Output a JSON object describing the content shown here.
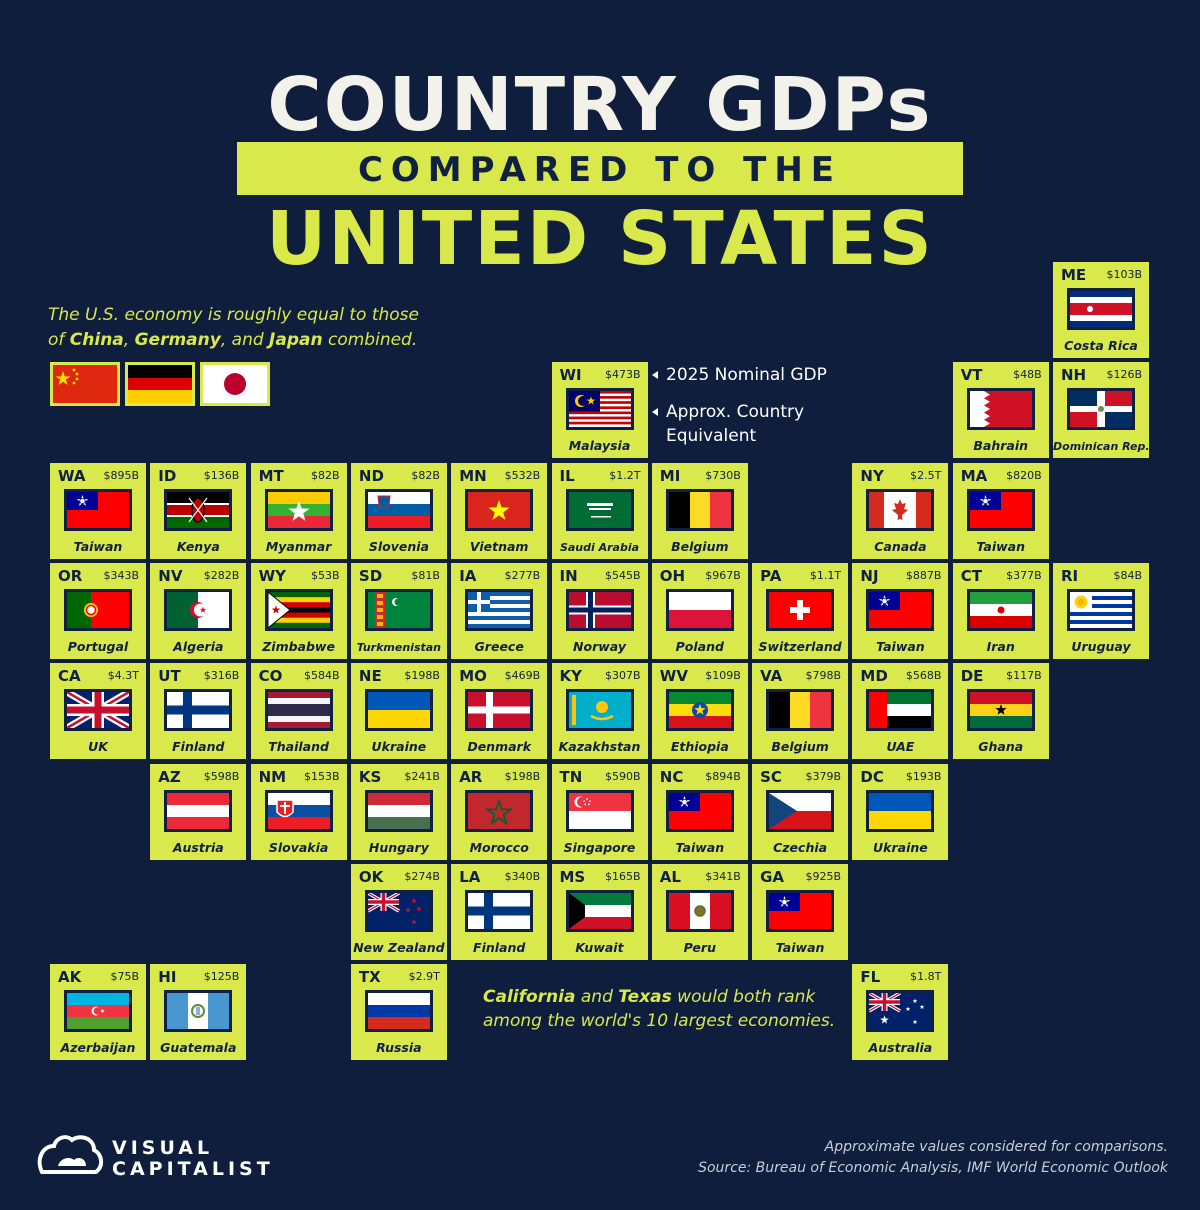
{
  "title": {
    "line1": "COUNTRY GDPs",
    "line2": "COMPARED TO THE",
    "line3": "UNITED STATES"
  },
  "intro": {
    "line1": "The U.S. economy is roughly equal to those",
    "of": "of",
    "country1": "China",
    "country2": "Germany",
    "and": "and",
    "country3": "Japan",
    "combined": "combined."
  },
  "intro_flags": [
    "china-flag",
    "germany-flag",
    "japan-flag"
  ],
  "legend": {
    "gdp": "2025 Nominal GDP",
    "equivalent_line1": "Approx. Country",
    "equivalent_line2": "Equivalent"
  },
  "note": {
    "california": "California",
    "and": "and",
    "texas": "Texas",
    "rest1": "would both rank",
    "rest2": "among the world's 10 largest economies."
  },
  "brand": {
    "line1": "VISUAL",
    "line2": "CAPITALIST"
  },
  "footer": {
    "line1": "Approximate values considered for comparisons.",
    "line2": "Source: Bureau of Economic Analysis, IMF World Economic Outlook"
  },
  "colors": {
    "background": "#0f1e3d",
    "accent": "#d9e84a",
    "text_dark": "#102040"
  },
  "states": [
    {
      "state": "ME",
      "gdp": "$103B",
      "country": "Costa Rica",
      "flag": "costa-rica"
    },
    {
      "state": "WI",
      "gdp": "$473B",
      "country": "Malaysia",
      "flag": "malaysia"
    },
    {
      "state": "VT",
      "gdp": "$48B",
      "country": "Bahrain",
      "flag": "bahrain"
    },
    {
      "state": "NH",
      "gdp": "$126B",
      "country": "Dominican Rep.",
      "flag": "dominican-republic"
    },
    {
      "state": "WA",
      "gdp": "$895B",
      "country": "Taiwan",
      "flag": "taiwan"
    },
    {
      "state": "ID",
      "gdp": "$136B",
      "country": "Kenya",
      "flag": "kenya"
    },
    {
      "state": "MT",
      "gdp": "$82B",
      "country": "Myanmar",
      "flag": "myanmar"
    },
    {
      "state": "ND",
      "gdp": "$82B",
      "country": "Slovenia",
      "flag": "slovenia"
    },
    {
      "state": "MN",
      "gdp": "$532B",
      "country": "Vietnam",
      "flag": "vietnam"
    },
    {
      "state": "IL",
      "gdp": "$1.2T",
      "country": "Saudi Arabia",
      "flag": "saudi-arabia"
    },
    {
      "state": "MI",
      "gdp": "$730B",
      "country": "Belgium",
      "flag": "belgium"
    },
    {
      "state": "NY",
      "gdp": "$2.5T",
      "country": "Canada",
      "flag": "canada"
    },
    {
      "state": "MA",
      "gdp": "$820B",
      "country": "Taiwan",
      "flag": "taiwan"
    },
    {
      "state": "OR",
      "gdp": "$343B",
      "country": "Portugal",
      "flag": "portugal"
    },
    {
      "state": "NV",
      "gdp": "$282B",
      "country": "Algeria",
      "flag": "algeria"
    },
    {
      "state": "WY",
      "gdp": "$53B",
      "country": "Zimbabwe",
      "flag": "zimbabwe"
    },
    {
      "state": "SD",
      "gdp": "$81B",
      "country": "Turkmenistan",
      "flag": "turkmenistan"
    },
    {
      "state": "IA",
      "gdp": "$277B",
      "country": "Greece",
      "flag": "greece"
    },
    {
      "state": "IN",
      "gdp": "$545B",
      "country": "Norway",
      "flag": "norway"
    },
    {
      "state": "OH",
      "gdp": "$967B",
      "country": "Poland",
      "flag": "poland"
    },
    {
      "state": "PA",
      "gdp": "$1.1T",
      "country": "Switzerland",
      "flag": "switzerland"
    },
    {
      "state": "NJ",
      "gdp": "$887B",
      "country": "Taiwan",
      "flag": "taiwan"
    },
    {
      "state": "CT",
      "gdp": "$377B",
      "country": "Iran",
      "flag": "iran"
    },
    {
      "state": "RI",
      "gdp": "$84B",
      "country": "Uruguay",
      "flag": "uruguay"
    },
    {
      "state": "CA",
      "gdp": "$4.3T",
      "country": "UK",
      "flag": "uk"
    },
    {
      "state": "UT",
      "gdp": "$316B",
      "country": "Finland",
      "flag": "finland"
    },
    {
      "state": "CO",
      "gdp": "$584B",
      "country": "Thailand",
      "flag": "thailand"
    },
    {
      "state": "NE",
      "gdp": "$198B",
      "country": "Ukraine",
      "flag": "ukraine"
    },
    {
      "state": "MO",
      "gdp": "$469B",
      "country": "Denmark",
      "flag": "denmark"
    },
    {
      "state": "KY",
      "gdp": "$307B",
      "country": "Kazakhstan",
      "flag": "kazakhstan"
    },
    {
      "state": "WV",
      "gdp": "$109B",
      "country": "Ethiopia",
      "flag": "ethiopia"
    },
    {
      "state": "VA",
      "gdp": "$798B",
      "country": "Belgium",
      "flag": "belgium"
    },
    {
      "state": "MD",
      "gdp": "$568B",
      "country": "UAE",
      "flag": "uae"
    },
    {
      "state": "DE",
      "gdp": "$117B",
      "country": "Ghana",
      "flag": "ghana"
    },
    {
      "state": "AZ",
      "gdp": "$598B",
      "country": "Austria",
      "flag": "austria"
    },
    {
      "state": "NM",
      "gdp": "$153B",
      "country": "Slovakia",
      "flag": "slovakia"
    },
    {
      "state": "KS",
      "gdp": "$241B",
      "country": "Hungary",
      "flag": "hungary"
    },
    {
      "state": "AR",
      "gdp": "$198B",
      "country": "Morocco",
      "flag": "morocco"
    },
    {
      "state": "TN",
      "gdp": "$590B",
      "country": "Singapore",
      "flag": "singapore"
    },
    {
      "state": "NC",
      "gdp": "$894B",
      "country": "Taiwan",
      "flag": "taiwan"
    },
    {
      "state": "SC",
      "gdp": "$379B",
      "country": "Czechia",
      "flag": "czechia"
    },
    {
      "state": "DC",
      "gdp": "$193B",
      "country": "Ukraine",
      "flag": "ukraine"
    },
    {
      "state": "OK",
      "gdp": "$274B",
      "country": "New Zealand",
      "flag": "new-zealand"
    },
    {
      "state": "LA",
      "gdp": "$340B",
      "country": "Finland",
      "flag": "finland"
    },
    {
      "state": "MS",
      "gdp": "$165B",
      "country": "Kuwait",
      "flag": "kuwait"
    },
    {
      "state": "AL",
      "gdp": "$341B",
      "country": "Peru",
      "flag": "peru"
    },
    {
      "state": "GA",
      "gdp": "$925B",
      "country": "Taiwan",
      "flag": "taiwan"
    },
    {
      "state": "AK",
      "gdp": "$75B",
      "country": "Azerbaijan",
      "flag": "azerbaijan"
    },
    {
      "state": "HI",
      "gdp": "$125B",
      "country": "Guatemala",
      "flag": "guatemala"
    },
    {
      "state": "TX",
      "gdp": "$2.9T",
      "country": "Russia",
      "flag": "russia"
    },
    {
      "state": "FL",
      "gdp": "$1.8T",
      "country": "Australia",
      "flag": "australia"
    }
  ]
}
